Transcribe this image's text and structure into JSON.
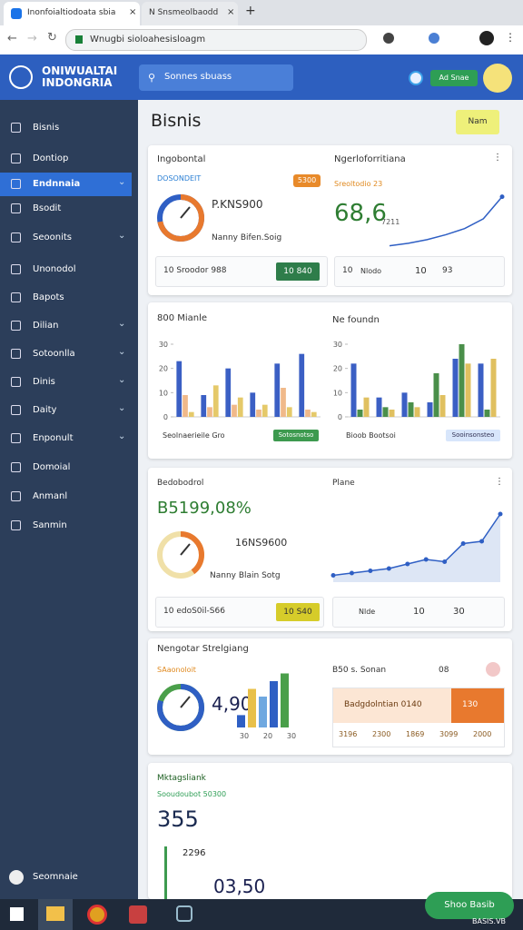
{
  "browser": {
    "tabs": [
      "Inonfoialtiodoata sbia",
      "N Snsmeolbaodd"
    ],
    "url": "Wnugbi sioloahesisloagm"
  },
  "header": {
    "logo": [
      "ONIWUALTAI",
      "INDONGRIA"
    ],
    "search": "Sonnes sbuass",
    "button": "Ad Snae"
  },
  "sidebar": {
    "items": [
      "Bisnis",
      "Dontiop",
      "Endnnaia",
      "Bsodit",
      "Seoonits",
      "Unonodol",
      "Bapots",
      "Dilian",
      "Sotoonlla",
      "Dinis",
      "Daity",
      "Enponult",
      "Domoial",
      "Anmanl",
      "Sanmin"
    ],
    "active": 2,
    "footer": "Seomnaie"
  },
  "page": {
    "title": "Bisnis",
    "button": "Nam"
  },
  "card1": {
    "left": {
      "title": "Ingobontal",
      "subtitle": "DOSONDEIT",
      "badge": "5300",
      "donut": 72,
      "value": "P.KNS900",
      "note": "Nanny Bifen.Soig",
      "footer": "10 Sroodor 988",
      "button": "10 840"
    },
    "right": {
      "title": "Ngerloforritiana",
      "subtitle": "Sreoltodio 23",
      "value": "68,6",
      "note": "7211",
      "line": [
        4,
        6,
        9,
        13,
        18,
        26,
        44
      ],
      "footer": [
        "10",
        "Nlodo",
        "10",
        "93"
      ]
    }
  },
  "card2": {
    "left": {
      "title": "800 Mianle",
      "yticks": [
        0,
        10,
        20,
        30
      ],
      "series": [
        {
          "color": "#3b5fc4",
          "values": [
            23,
            9,
            20,
            10,
            22,
            26
          ]
        },
        {
          "color": "#f0b98a",
          "values": [
            9,
            4,
            5,
            3,
            12,
            3
          ]
        },
        {
          "color": "#e5c96a",
          "values": [
            2,
            13,
            8,
            5,
            4,
            2
          ]
        }
      ],
      "legend": "Seolnaerieile Gro",
      "button": "Sotosnotso"
    },
    "right": {
      "title": "Ne foundn",
      "yticks": [
        0,
        10,
        20,
        30
      ],
      "series": [
        {
          "color": "#3b5fc4",
          "values": [
            22,
            8,
            10,
            6,
            24,
            22
          ]
        },
        {
          "color": "#4a8f4a",
          "values": [
            3,
            4,
            6,
            18,
            30,
            3
          ]
        },
        {
          "color": "#e0c060",
          "values": [
            8,
            3,
            4,
            9,
            22,
            24
          ]
        }
      ],
      "legend": "Bioob Bootsoi",
      "button": "Sooinsonsteo"
    }
  },
  "card3": {
    "left": {
      "title": "Bedobodrol",
      "value": "B5199,08%",
      "gauge": 40,
      "amount": "16NS9600",
      "note": "Nanny Blain Sotg",
      "footer": "10 edoS0il-S66",
      "button": "10 S40"
    },
    "right": {
      "title": "Plane",
      "line": [
        3,
        4,
        5,
        6,
        8,
        10,
        9,
        17,
        18,
        30
      ],
      "footer": [
        "Nlde",
        "10",
        "30"
      ]
    }
  },
  "card4": {
    "left": {
      "title": "Nengotar Strelgiang",
      "subtitle": "SAaonoloit",
      "donut": 80,
      "value": "4,90",
      "bars": [
        8,
        25,
        20,
        30,
        35
      ],
      "bar_labels": [
        "30",
        "20",
        "30"
      ]
    },
    "right": {
      "header": [
        "B50 s. Sonan",
        "08"
      ],
      "table": {
        "header": [
          "Badgdolntian 0140",
          "130"
        ],
        "row": [
          "3196",
          "2300",
          "1869",
          "3099",
          "2000"
        ]
      }
    }
  },
  "card5": {
    "title": "Mktagsliank",
    "subtitle": "Sooudoubot 50300",
    "value": "355",
    "sub": "2296",
    "big": "03,50"
  },
  "taskbar": {
    "button": "Shoo Basib",
    "caption": "BASIS.VB"
  }
}
